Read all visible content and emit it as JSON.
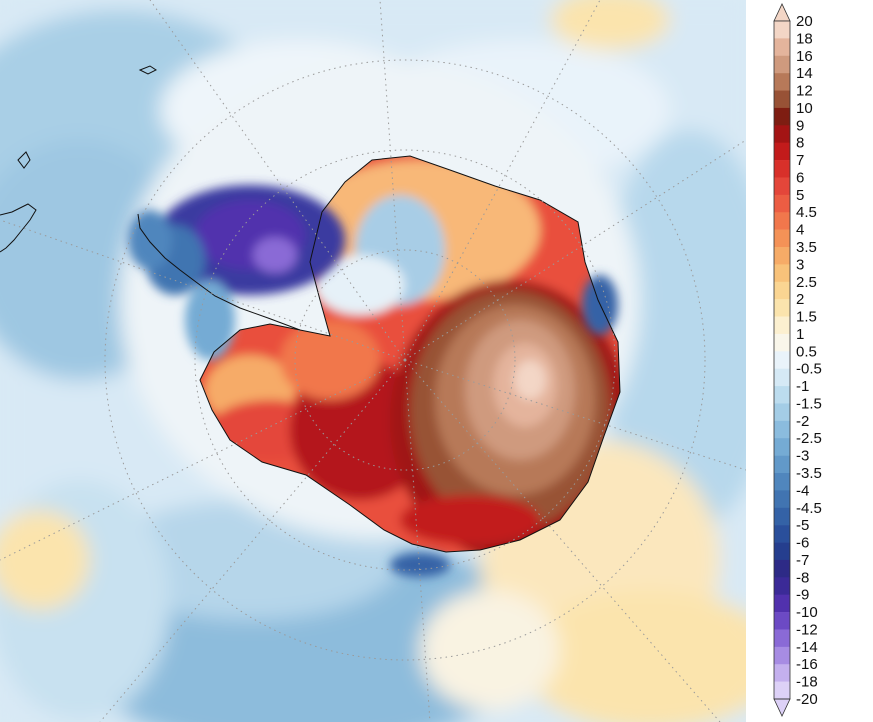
{
  "colorbar": {
    "labels": [
      "20",
      "18",
      "16",
      "14",
      "12",
      "10",
      "9",
      "8",
      "7",
      "6",
      "5",
      "4.5",
      "4",
      "3.5",
      "3",
      "2.5",
      "2",
      "1.5",
      "1",
      "0.5",
      "-0.5",
      "-1",
      "-1.5",
      "-2",
      "-2.5",
      "-3",
      "-3.5",
      "-4",
      "-4.5",
      "-5",
      "-6",
      "-7",
      "-8",
      "-9",
      "-10",
      "-12",
      "-14",
      "-16",
      "-18",
      "-20"
    ],
    "colors": [
      "#f3d6c6",
      "#e4b49c",
      "#cf9a7e",
      "#b77959",
      "#985236",
      "#7e1d12",
      "#a31414",
      "#c21b1b",
      "#d8302a",
      "#e4463a",
      "#ec5d43",
      "#f1774c",
      "#f49257",
      "#f6ab67",
      "#f8c27a",
      "#fad592",
      "#fbe4ad",
      "#fcf0d0",
      "#f9f6ea",
      "#e9f3fa",
      "#d5e9f5",
      "#bcdcee",
      "#a4cde6",
      "#8bbcde",
      "#75abd4",
      "#6299c9",
      "#5086bd",
      "#4174b1",
      "#3462a6",
      "#2a4f9b",
      "#253e8e",
      "#2d2a86",
      "#3b2a97",
      "#5131ad",
      "#6c4ac4",
      "#8a6ad6",
      "#a78ce3",
      "#c4b0ee",
      "#ddd1f7"
    ]
  }
}
